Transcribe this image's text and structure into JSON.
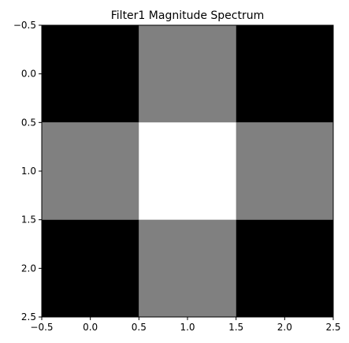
{
  "chart_data": {
    "type": "heatmap",
    "title": "Filter1 Magnitude Spectrum",
    "xlabel": "",
    "ylabel": "",
    "colormap": "gray",
    "value_range": [
      0,
      1
    ],
    "grid": false,
    "x_ticks": [
      -0.5,
      0.0,
      0.5,
      1.0,
      1.5,
      2.0,
      2.5
    ],
    "y_ticks": [
      -0.5,
      0.0,
      0.5,
      1.0,
      1.5,
      2.0,
      2.5
    ],
    "x_tick_labels": [
      "−0.5",
      "0.0",
      "0.5",
      "1.0",
      "1.5",
      "2.0",
      "2.5"
    ],
    "y_tick_labels": [
      "−0.5",
      "0.0",
      "0.5",
      "1.0",
      "1.5",
      "2.0",
      "2.5"
    ],
    "xlim": [
      -0.5,
      2.5
    ],
    "ylim": [
      2.5,
      -0.5
    ],
    "matrix": [
      [
        0.0,
        0.5,
        0.0
      ],
      [
        0.5,
        1.0,
        0.5
      ],
      [
        0.0,
        0.5,
        0.0
      ]
    ]
  }
}
